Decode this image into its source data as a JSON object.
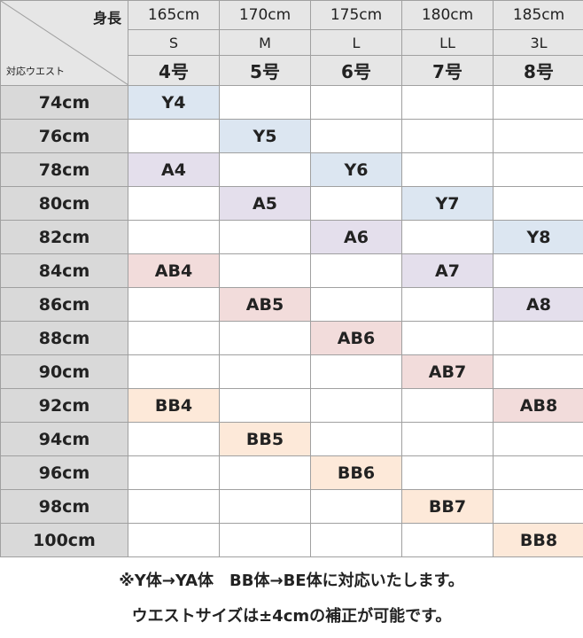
{
  "header": {
    "corner_top": "身長",
    "corner_bottom": "対応ウエスト",
    "heights": [
      "165cm",
      "170cm",
      "175cm",
      "180cm",
      "185cm"
    ],
    "sizes": [
      "S",
      "M",
      "L",
      "LL",
      "3L"
    ],
    "numbers": [
      "4号",
      "5号",
      "6号",
      "7号",
      "8号"
    ]
  },
  "rows": [
    {
      "waist": "74cm",
      "cells": [
        "Y4",
        "",
        "",
        "",
        ""
      ]
    },
    {
      "waist": "76cm",
      "cells": [
        "",
        "Y5",
        "",
        "",
        ""
      ]
    },
    {
      "waist": "78cm",
      "cells": [
        "A4",
        "",
        "Y6",
        "",
        ""
      ]
    },
    {
      "waist": "80cm",
      "cells": [
        "",
        "A5",
        "",
        "Y7",
        ""
      ]
    },
    {
      "waist": "82cm",
      "cells": [
        "",
        "",
        "A6",
        "",
        "Y8"
      ]
    },
    {
      "waist": "84cm",
      "cells": [
        "AB4",
        "",
        "",
        "A7",
        ""
      ]
    },
    {
      "waist": "86cm",
      "cells": [
        "",
        "AB5",
        "",
        "",
        "A8"
      ]
    },
    {
      "waist": "88cm",
      "cells": [
        "",
        "",
        "AB6",
        "",
        ""
      ]
    },
    {
      "waist": "90cm",
      "cells": [
        "",
        "",
        "",
        "AB7",
        ""
      ]
    },
    {
      "waist": "92cm",
      "cells": [
        "BB4",
        "",
        "",
        "",
        "AB8"
      ]
    },
    {
      "waist": "94cm",
      "cells": [
        "",
        "BB5",
        "",
        "",
        ""
      ]
    },
    {
      "waist": "96cm",
      "cells": [
        "",
        "",
        "BB6",
        "",
        ""
      ]
    },
    {
      "waist": "98cm",
      "cells": [
        "",
        "",
        "",
        "BB7",
        ""
      ]
    },
    {
      "waist": "100cm",
      "cells": [
        "",
        "",
        "",
        "",
        "BB8"
      ]
    }
  ],
  "colors": {
    "Y": "#dce6f1",
    "A": "#e4dfec",
    "AB": "#f2dcdb",
    "BB": "#fde9d9",
    "header_bg": "#e6e6e6",
    "waist_bg": "#d9d9d9"
  },
  "notes": [
    "※Y体→YA体　BB体→BE体に対応いたします。",
    "ウエストサイズは±4cmの補正が可能です。"
  ]
}
